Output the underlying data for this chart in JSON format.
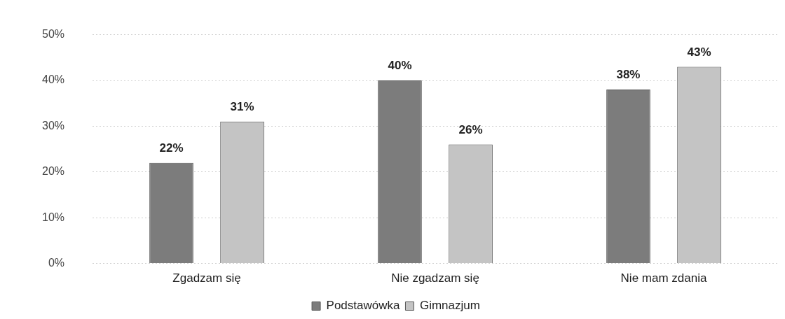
{
  "chart_data": {
    "type": "bar",
    "categories": [
      "Zgadzam się",
      "Nie zgadzam się",
      "Nie mam zdania"
    ],
    "series": [
      {
        "name": "Podstawówka",
        "color": "#7c7c7c",
        "values": [
          22,
          40,
          38
        ],
        "value_labels": [
          "22%",
          "40%",
          "38%"
        ]
      },
      {
        "name": "Gimnazjum",
        "color": "#c4c4c4",
        "values": [
          31,
          26,
          43
        ],
        "value_labels": [
          "31%",
          "26%",
          "43%"
        ]
      }
    ],
    "ylim": [
      0,
      50
    ],
    "yticks": [
      {
        "value": 0,
        "label": "0%"
      },
      {
        "value": 10,
        "label": "10%"
      },
      {
        "value": 20,
        "label": "20%"
      },
      {
        "value": 30,
        "label": "30%"
      },
      {
        "value": 40,
        "label": "40%"
      },
      {
        "value": 50,
        "label": "50%"
      }
    ],
    "grid": "y",
    "legend": "bottom"
  }
}
